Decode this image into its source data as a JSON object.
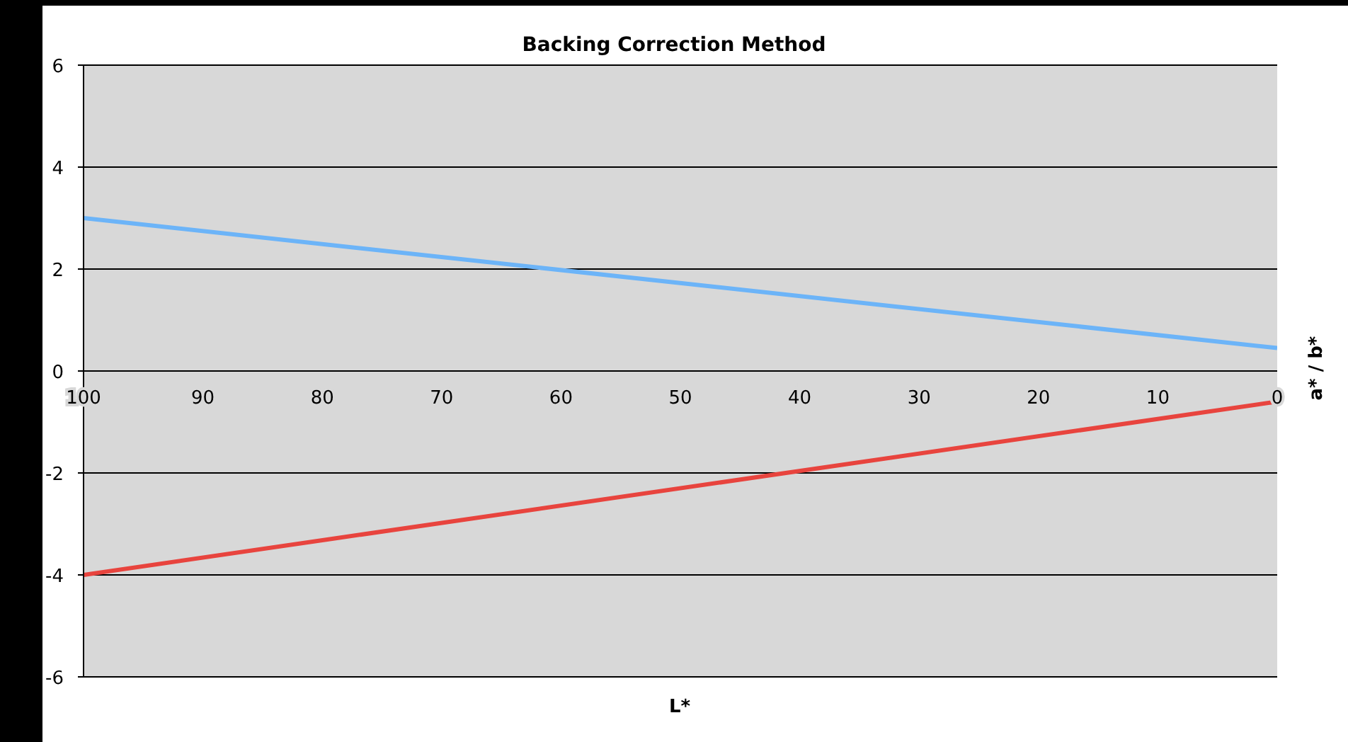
{
  "chart_data": {
    "type": "line",
    "title": "Backing Correction Method",
    "xlabel": "L*",
    "ylabel": "a* / b*",
    "x": [
      100,
      0
    ],
    "series": [
      {
        "color": "#6cb4f8",
        "values": [
          3.0,
          0.45
        ]
      },
      {
        "color": "#e8443e",
        "values": [
          -4.0,
          -0.6
        ]
      }
    ],
    "xlim": [
      100,
      0
    ],
    "xticks": [
      100,
      90,
      80,
      70,
      60,
      50,
      40,
      30,
      20,
      10,
      0
    ],
    "ylim": [
      -6,
      6
    ],
    "yticks": [
      -6,
      -4,
      -2,
      0,
      2,
      4,
      6
    ],
    "grid": "y",
    "marker": "none",
    "line_style": "solid"
  }
}
